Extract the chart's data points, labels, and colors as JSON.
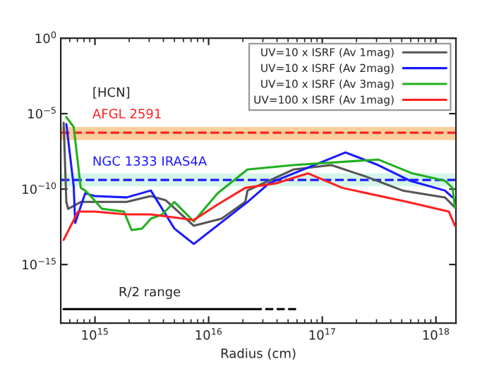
{
  "chart_data": {
    "type": "line",
    "xlabel": "Radius (cm)",
    "log": "xy",
    "xlim": [
      500000000000000.0,
      1.5e+18
    ],
    "ylim": [
      1.3e-19,
      1
    ],
    "xticks": [
      {
        "value": 1000000000000000.0,
        "label": "10$^{15}$"
      },
      {
        "value": 1e+16,
        "label": "10$^{16}$"
      },
      {
        "value": 1e+17,
        "label": "10$^{17}$"
      },
      {
        "value": 1e+18,
        "label": "10$^{18}$"
      }
    ],
    "yticks": [
      {
        "value": 1e-15,
        "label": "10$^{−15}$"
      },
      {
        "value": 1e-10,
        "label": "10$^{−10}$"
      },
      {
        "value": 1e-05,
        "label": "10$^{−5}$"
      },
      {
        "value": 1,
        "label": "10$^{0}$"
      }
    ],
    "grid": false,
    "legend": "top right",
    "series": [
      {
        "name": "UV=10 x ISRF (Av 1mag)",
        "color": "#555555",
        "x": [
          530000000000000.0,
          560000000000000.0,
          580000000000000.0,
          750000000000000.0,
          1000000000000000.0,
          1900000000000000.0,
          3100000000000000.0,
          4200000000000000.0,
          7400000000000000.0,
          1.3e+16,
          2.1e+16,
          2.2e+16,
          5.6e+16,
          1.2e+17,
          2.4e+17,
          5.1e+17,
          1.2e+18,
          1.47e+18
        ],
        "values": [
          2.5e-06,
          1.4e-11,
          4.9e-12,
          1.4e-11,
          1.4e-11,
          1.4e-11,
          3.4e-11,
          1.8e-11,
          3.7e-13,
          1.1e-12,
          1.4e-11,
          8e-11,
          2e-09,
          3.9e-09,
          6.9e-10,
          8e-11,
          2.8e-11,
          6.1e-12
        ]
      },
      {
        "name": "UV=10 x ISRF (Av 2mag)",
        "color": "#1a1aff",
        "x": [
          560000000000000.0,
          650000000000000.0,
          670000000000000.0,
          820000000000000.0,
          1000000000000000.0,
          1900000000000000.0,
          3100000000000000.0,
          5000000000000000.0,
          7400000000000000.0,
          2.2e+16,
          3.4e+16,
          1.6e+17,
          3.1e+17,
          5.9e+17,
          1.2e+18,
          1.4e+18
        ],
        "values": [
          2e-06,
          1.5e-10,
          5.7e-13,
          5.3e-11,
          3.4e-11,
          2.8e-11,
          8e-11,
          2.4e-13,
          2.3e-14,
          1.4e-11,
          2.4e-10,
          2.7e-08,
          3.9e-09,
          3.6e-10,
          8e-11,
          2.8e-11
        ]
      },
      {
        "name": "UV=10 x ISRF (Av 3mag)",
        "color": "#1fb01f",
        "x": [
          560000000000000.0,
          650000000000000.0,
          750000000000000.0,
          820000000000000.0,
          940000000000000.0,
          1150000000000000.0,
          1800000000000000.0,
          2100000000000000.0,
          2600000000000000.0,
          3100000000000000.0,
          3900000000000000.0,
          5000000000000000.0,
          7400000000000000.0,
          1.2e+16,
          2.2e+16,
          5.6e+16,
          3.1e+17,
          6.2e+17,
          1.2e+18,
          1.4e+18,
          1.47e+18
        ],
        "values": [
          5.9e-06,
          1.3e-06,
          1.2e-10,
          8e-11,
          2.8e-11,
          4.9e-12,
          3.2e-12,
          1.9e-13,
          2.4e-13,
          1.1e-12,
          2.1e-12,
          1.4e-11,
          7.1e-13,
          5.3e-11,
          2e-09,
          3.9e-09,
          9.1e-09,
          1.1e-09,
          3.6e-10,
          1.2e-10,
          6.1e-12
        ]
      },
      {
        "name": "UV=100 x ISRF (Av 1mag)",
        "color": "#ff2020",
        "x": [
          530000000000000.0,
          710000000000000.0,
          1000000000000000.0,
          1900000000000000.0,
          3100000000000000.0,
          7400000000000000.0,
          1.2e+16,
          2.1e+16,
          3.9e+16,
          7.5e+16,
          1.5e+17,
          5.6e+17,
          1.3e+18,
          1.47e+18
        ],
        "values": [
          4.3e-14,
          3.2e-12,
          3.2e-12,
          2.1e-12,
          2.1e-12,
          8.8e-13,
          9.4e-12,
          1.2e-10,
          2.4e-10,
          1.1e-09,
          1.2e-10,
          1.4e-11,
          3.2e-12,
          3.7e-13
        ]
      },
      {
        "color": "#000000",
        "x": [
          530000000000000.0,
          2.5e+16
        ],
        "values": [
          1.1e-18,
          1.1e-18
        ],
        "line_style": "solid"
      },
      {
        "color": "#000000",
        "x": [
          2.5e+16,
          6.3e+16
        ],
        "values": [
          1.1e-18,
          1.1e-18
        ],
        "line_style": "dashed"
      }
    ],
    "bands": [
      {
        "axis": "y",
        "from": 1.8e-07,
        "to": 1.3e-06,
        "color": "#f8cf9c"
      },
      {
        "axis": "y",
        "from": 1.5e-10,
        "to": 1.1e-09,
        "color": "#d6f5ea"
      }
    ],
    "ref_lines": [
      {
        "axis": "y",
        "value": 5.5e-07,
        "label": "AFGL 2591",
        "color": "#ff2020",
        "line_style": "dashed"
      },
      {
        "axis": "y",
        "value": 4e-10,
        "label": "NGC 1333 IRAS4A",
        "color": "#1a1aff",
        "line_style": "dashed"
      }
    ],
    "annotations": [
      "[HCN]",
      "R/2 range"
    ]
  }
}
